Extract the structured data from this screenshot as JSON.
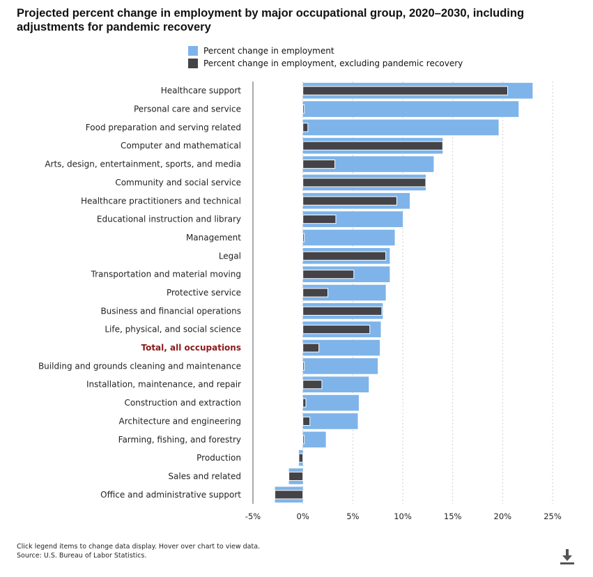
{
  "chart_data": {
    "type": "bar",
    "orientation": "horizontal",
    "title": "Projected percent change in employment by major occupational group, 2020–2030, including adjustments for pandemic recovery",
    "xlabel": "",
    "ylabel": "",
    "xlim": [
      -5,
      25
    ],
    "xticks": [
      -5,
      0,
      5,
      10,
      15,
      20,
      25
    ],
    "xtick_labels": [
      "-5%",
      "0%",
      "5%",
      "10%",
      "15%",
      "20%",
      "25%"
    ],
    "grid": true,
    "legend_position": "top",
    "highlight_category": "Total, all occupations",
    "categories": [
      "Healthcare support",
      "Personal care and service",
      "Food preparation and serving related",
      "Computer and mathematical",
      "Arts, design, entertainment, sports, and media",
      "Community and social service",
      "Healthcare practitioners and technical",
      "Educational instruction and library",
      "Management",
      "Legal",
      "Transportation and material moving",
      "Protective service",
      "Business and financial operations",
      "Life, physical, and social science",
      "Total, all occupations",
      "Building and grounds cleaning and maintenance",
      "Installation, maintenance, and repair",
      "Construction and extraction",
      "Architecture and engineering",
      "Farming, fishing, and forestry",
      "Production",
      "Sales and related",
      "Office and administrative support"
    ],
    "series": [
      {
        "name": "Percent change in employment",
        "color": "#7eb4ea",
        "values": [
          23.0,
          21.6,
          19.6,
          14.0,
          13.1,
          12.3,
          10.7,
          10.0,
          9.2,
          8.7,
          8.7,
          8.3,
          8.0,
          7.8,
          7.7,
          7.5,
          6.6,
          5.6,
          5.5,
          2.3,
          -0.4,
          -1.4,
          -2.8
        ]
      },
      {
        "name": "Percent change in employment, excluding pandemic recovery",
        "color": "#434348",
        "values": [
          20.5,
          0.1,
          0.5,
          14.0,
          3.2,
          12.3,
          9.4,
          3.3,
          0.1,
          8.3,
          5.1,
          2.5,
          7.9,
          6.7,
          1.6,
          0.1,
          1.9,
          0.3,
          0.7,
          0.1,
          -0.4,
          -1.4,
          -2.8
        ]
      }
    ]
  },
  "legend": {
    "items": [
      {
        "label": "Percent change in employment",
        "color": "#7eb4ea"
      },
      {
        "label": "Percent change in employment, excluding pandemic recovery",
        "color": "#434348"
      }
    ]
  },
  "footer": {
    "note": "Click legend items to change data display. Hover over chart to view data.",
    "source": "Source: U.S. Bureau of Labor Statistics."
  },
  "colors": {
    "highlight_label": "#8b1a1a",
    "axis": "#555555",
    "grid": "#cfcfcf"
  },
  "icons": {
    "download": "download-icon"
  }
}
